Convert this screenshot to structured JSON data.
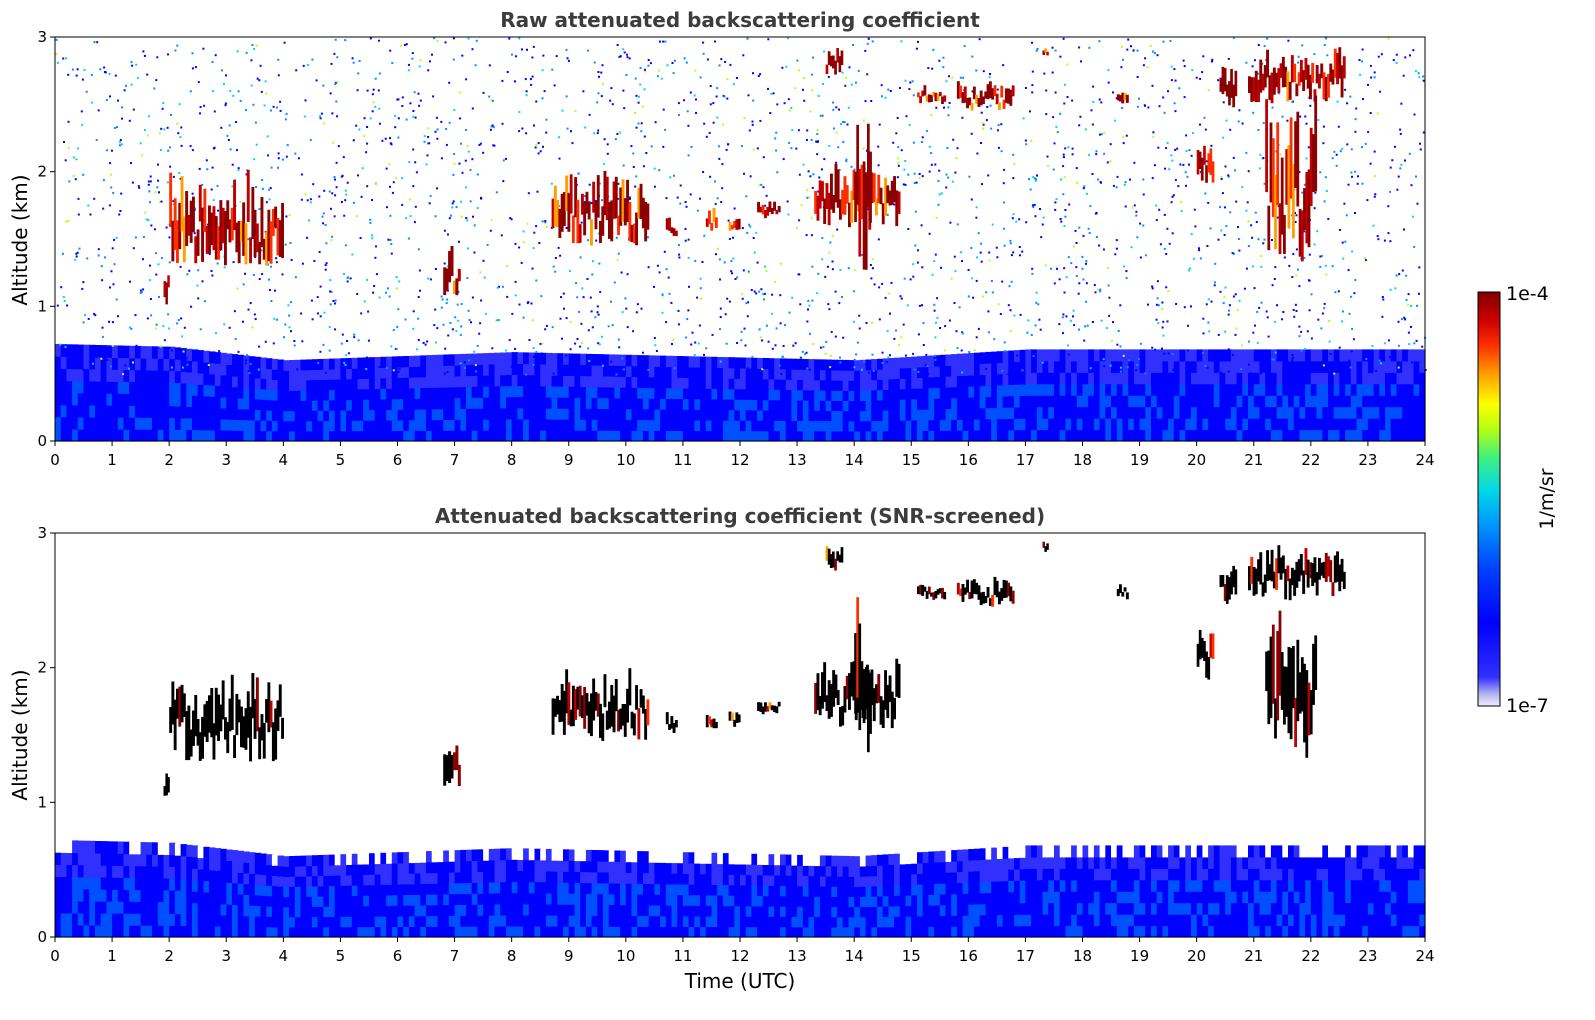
{
  "chart_data": [
    {
      "type": "heatmap",
      "title": "Raw attenuated backscattering coefficient",
      "xlabel": "",
      "ylabel": "Altitude (km)",
      "xlim": [
        0,
        24
      ],
      "ylim": [
        0,
        3
      ],
      "x_ticks": [
        "0",
        "1",
        "2",
        "3",
        "4",
        "5",
        "6",
        "7",
        "8",
        "9",
        "10",
        "11",
        "12",
        "13",
        "14",
        "15",
        "16",
        "17",
        "18",
        "19",
        "20",
        "21",
        "22",
        "23",
        "24"
      ],
      "y_ticks": [
        "0",
        "1",
        "2",
        "3"
      ],
      "aerosol_layer": {
        "top_km_by_hour": [
          [
            0,
            0.72
          ],
          [
            2,
            0.7
          ],
          [
            4,
            0.6
          ],
          [
            8,
            0.66
          ],
          [
            14,
            0.6
          ],
          [
            17,
            0.68
          ],
          [
            24,
            0.68
          ]
        ]
      },
      "clouds": [
        {
          "x": [
            1.9,
            2.0
          ],
          "y": [
            1.0,
            1.35
          ]
        },
        {
          "x": [
            2.0,
            4.0
          ],
          "y": [
            1.3,
            2.05
          ]
        },
        {
          "x": [
            6.8,
            7.1
          ],
          "y": [
            1.05,
            1.5
          ]
        },
        {
          "x": [
            8.7,
            10.4
          ],
          "y": [
            1.45,
            2.05
          ]
        },
        {
          "x": [
            10.7,
            10.9
          ],
          "y": [
            1.5,
            1.7
          ]
        },
        {
          "x": [
            11.4,
            11.6
          ],
          "y": [
            1.55,
            1.75
          ]
        },
        {
          "x": [
            11.8,
            12.0
          ],
          "y": [
            1.55,
            1.7
          ]
        },
        {
          "x": [
            12.3,
            12.7
          ],
          "y": [
            1.65,
            1.8
          ]
        },
        {
          "x": [
            13.3,
            14.8
          ],
          "y": [
            1.55,
            2.1
          ]
        },
        {
          "x": [
            13.5,
            13.8
          ],
          "y": [
            2.7,
            2.95
          ]
        },
        {
          "x": [
            14.0,
            14.3
          ],
          "y": [
            1.2,
            2.7
          ]
        },
        {
          "x": [
            15.1,
            15.6
          ],
          "y": [
            2.5,
            2.65
          ]
        },
        {
          "x": [
            15.8,
            16.8
          ],
          "y": [
            2.45,
            2.7
          ]
        },
        {
          "x": [
            17.3,
            17.4
          ],
          "y": [
            2.85,
            2.95
          ]
        },
        {
          "x": [
            18.6,
            18.8
          ],
          "y": [
            2.5,
            2.65
          ]
        },
        {
          "x": [
            20.0,
            20.3
          ],
          "y": [
            1.9,
            2.3
          ]
        },
        {
          "x": [
            20.4,
            20.7
          ],
          "y": [
            2.45,
            2.85
          ]
        },
        {
          "x": [
            20.9,
            22.6
          ],
          "y": [
            2.5,
            2.95
          ]
        },
        {
          "x": [
            21.2,
            22.1
          ],
          "y": [
            1.3,
            2.6
          ]
        }
      ]
    },
    {
      "type": "heatmap",
      "title": "Attenuated backscattering coefficient (SNR-screened)",
      "xlabel": "Time (UTC)",
      "ylabel": "Altitude (km)",
      "xlim": [
        0,
        24
      ],
      "ylim": [
        0,
        3
      ],
      "x_ticks": [
        "0",
        "1",
        "2",
        "3",
        "4",
        "5",
        "6",
        "7",
        "8",
        "9",
        "10",
        "11",
        "12",
        "13",
        "14",
        "15",
        "16",
        "17",
        "18",
        "19",
        "20",
        "21",
        "22",
        "23",
        "24"
      ],
      "y_ticks": [
        "0",
        "1",
        "2",
        "3"
      ],
      "screened": true
    }
  ],
  "colorbar": {
    "label": "1/m/sr",
    "top_label": "1e-4",
    "bottom_label": "1e-7",
    "colors": [
      "#e8e8f8",
      "#8080f0",
      "#0000ff",
      "#0050ff",
      "#00a0ff",
      "#00e0e0",
      "#40ff80",
      "#c0ff00",
      "#ffff00",
      "#ffa000",
      "#ff3000",
      "#d00000",
      "#800000"
    ]
  }
}
